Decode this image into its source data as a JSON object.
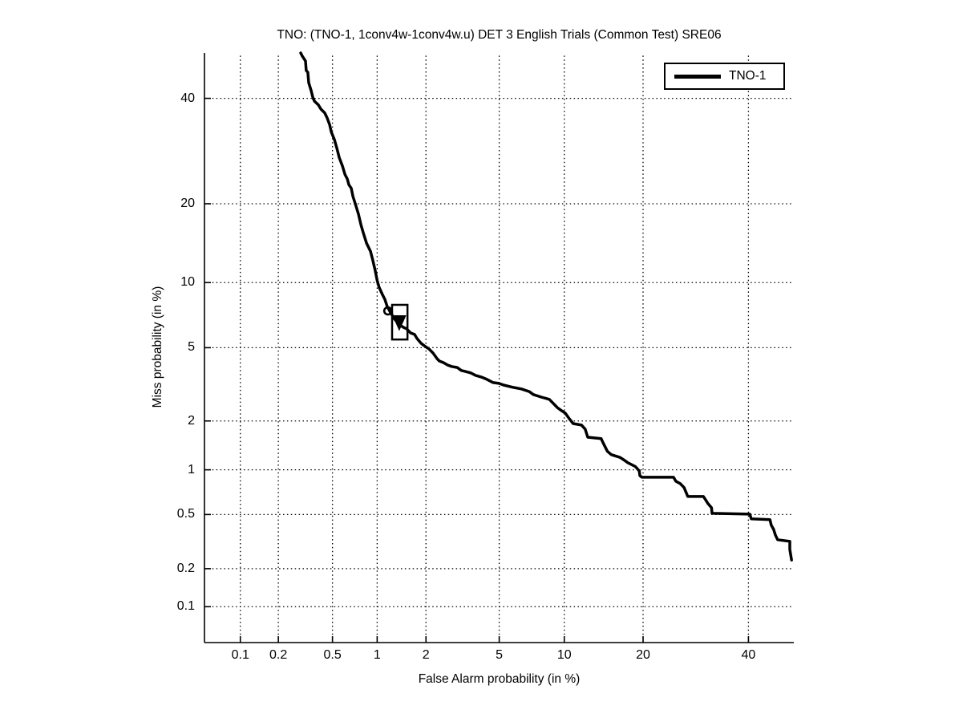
{
  "chart_data": {
    "type": "line",
    "title": "TNO: (TNO-1, 1conv4w-1conv4w.u) DET 3 English Trials (Common Test) SRE06",
    "xlabel": "False Alarm probability (in %)",
    "ylabel": "Miss probability (in %)",
    "scale": "normal-deviate (probit) on both axes, DET plot",
    "xlim_pct": [
      0.05,
      50
    ],
    "ylim_pct": [
      0.05,
      50
    ],
    "xticks_pct": [
      0.1,
      0.2,
      0.5,
      1,
      2,
      5,
      10,
      20,
      40
    ],
    "xtick_labels": [
      "0.1",
      "0.2",
      "0.5",
      "1",
      "2",
      "5",
      "10",
      "20",
      "40"
    ],
    "yticks_pct": [
      0.1,
      0.2,
      0.5,
      1,
      2,
      5,
      10,
      20,
      40
    ],
    "ytick_labels": [
      "0.1",
      "0.2",
      "0.5",
      "1",
      "2",
      "5",
      "10",
      "20",
      "40"
    ],
    "grid": "dotted",
    "line_color": "#000000",
    "background": "#ffffff",
    "legend": {
      "position": "top-right",
      "entries": [
        {
          "label": "TNO-1",
          "color": "#000000"
        }
      ]
    },
    "series": [
      {
        "name": "TNO-1",
        "color": "#000000",
        "points_fa_miss_pct": [
          [
            0.295,
            50
          ],
          [
            0.303,
            49.3
          ],
          [
            0.32,
            48.2
          ],
          [
            0.324,
            46.1
          ],
          [
            0.333,
            45.7
          ],
          [
            0.338,
            43.4
          ],
          [
            0.352,
            41.7
          ],
          [
            0.363,
            40.1
          ],
          [
            0.372,
            39.4
          ],
          [
            0.397,
            38.6
          ],
          [
            0.414,
            37.7
          ],
          [
            0.441,
            36.9
          ],
          [
            0.459,
            35.8
          ],
          [
            0.478,
            34.4
          ],
          [
            0.49,
            33
          ],
          [
            0.516,
            31.4
          ],
          [
            0.537,
            29.7
          ],
          [
            0.557,
            28
          ],
          [
            0.587,
            26.4
          ],
          [
            0.61,
            24.9
          ],
          [
            0.633,
            24.1
          ],
          [
            0.649,
            23.1
          ],
          [
            0.674,
            22.5
          ],
          [
            0.691,
            21.2
          ],
          [
            0.717,
            20
          ],
          [
            0.754,
            18.4
          ],
          [
            0.782,
            16.9
          ],
          [
            0.811,
            15.8
          ],
          [
            0.853,
            14.4
          ],
          [
            0.906,
            13.4
          ],
          [
            0.939,
            12.3
          ],
          [
            0.972,
            11.2
          ],
          [
            1.0,
            10.2
          ],
          [
            1.03,
            9.55
          ],
          [
            1.08,
            8.9
          ],
          [
            1.12,
            8.47
          ],
          [
            1.16,
            7.86
          ],
          [
            1.22,
            7.35
          ],
          [
            1.29,
            6.87
          ],
          [
            1.37,
            6.52
          ],
          [
            1.46,
            6.29
          ],
          [
            1.53,
            6.19
          ],
          [
            1.62,
            5.91
          ],
          [
            1.71,
            5.81
          ],
          [
            1.77,
            5.55
          ],
          [
            1.87,
            5.26
          ],
          [
            1.98,
            5.07
          ],
          [
            2.08,
            4.93
          ],
          [
            2.2,
            4.7
          ],
          [
            2.32,
            4.4
          ],
          [
            2.39,
            4.28
          ],
          [
            2.52,
            4.2
          ],
          [
            2.66,
            4.08
          ],
          [
            2.8,
            4.01
          ],
          [
            3.01,
            3.96
          ],
          [
            3.17,
            3.82
          ],
          [
            3.32,
            3.78
          ],
          [
            3.56,
            3.71
          ],
          [
            3.78,
            3.6
          ],
          [
            4.04,
            3.53
          ],
          [
            4.32,
            3.43
          ],
          [
            4.66,
            3.29
          ],
          [
            4.98,
            3.26
          ],
          [
            5.26,
            3.19
          ],
          [
            5.86,
            3.1
          ],
          [
            6.41,
            3.04
          ],
          [
            6.98,
            2.94
          ],
          [
            7.29,
            2.83
          ],
          [
            7.93,
            2.74
          ],
          [
            8.61,
            2.66
          ],
          [
            9.34,
            2.39
          ],
          [
            9.71,
            2.3
          ],
          [
            10.1,
            2.22
          ],
          [
            10.5,
            2.06
          ],
          [
            10.9,
            1.93
          ],
          [
            11.8,
            1.89
          ],
          [
            12.2,
            1.79
          ],
          [
            12.5,
            1.6
          ],
          [
            14.1,
            1.57
          ],
          [
            14.4,
            1.46
          ],
          [
            14.9,
            1.31
          ],
          [
            15.4,
            1.25
          ],
          [
            16.6,
            1.2
          ],
          [
            17.1,
            1.16
          ],
          [
            17.7,
            1.11
          ],
          [
            18.8,
            1.05
          ],
          [
            19.4,
            0.985
          ],
          [
            19.5,
            0.917
          ],
          [
            19.8,
            0.895
          ],
          [
            25.1,
            0.895
          ],
          [
            25.5,
            0.843
          ],
          [
            26.3,
            0.812
          ],
          [
            27,
            0.765
          ],
          [
            27.7,
            0.666
          ],
          [
            30.7,
            0.666
          ],
          [
            31.1,
            0.633
          ],
          [
            31.6,
            0.595
          ],
          [
            32.3,
            0.557
          ],
          [
            32.4,
            0.51
          ],
          [
            40.3,
            0.503
          ],
          [
            40.6,
            0.466
          ],
          [
            44.7,
            0.46
          ],
          [
            45,
            0.42
          ],
          [
            45.5,
            0.392
          ],
          [
            45.9,
            0.357
          ],
          [
            46.4,
            0.33
          ],
          [
            49.1,
            0.321
          ],
          [
            49.1,
            0.28
          ],
          [
            49.5,
            0.233
          ]
        ]
      }
    ],
    "markers": [
      {
        "type": "open-circle",
        "fa_pct": 1.17,
        "miss_pct": 7.5
      },
      {
        "type": "filled-triangle-down",
        "fa_pct": 1.38,
        "miss_pct": 6.6
      },
      {
        "type": "rect-outline",
        "fa_pct_min": 1.245,
        "fa_pct_max": 1.55,
        "miss_pct_min": 5.49,
        "miss_pct_max": 7.99
      }
    ]
  }
}
